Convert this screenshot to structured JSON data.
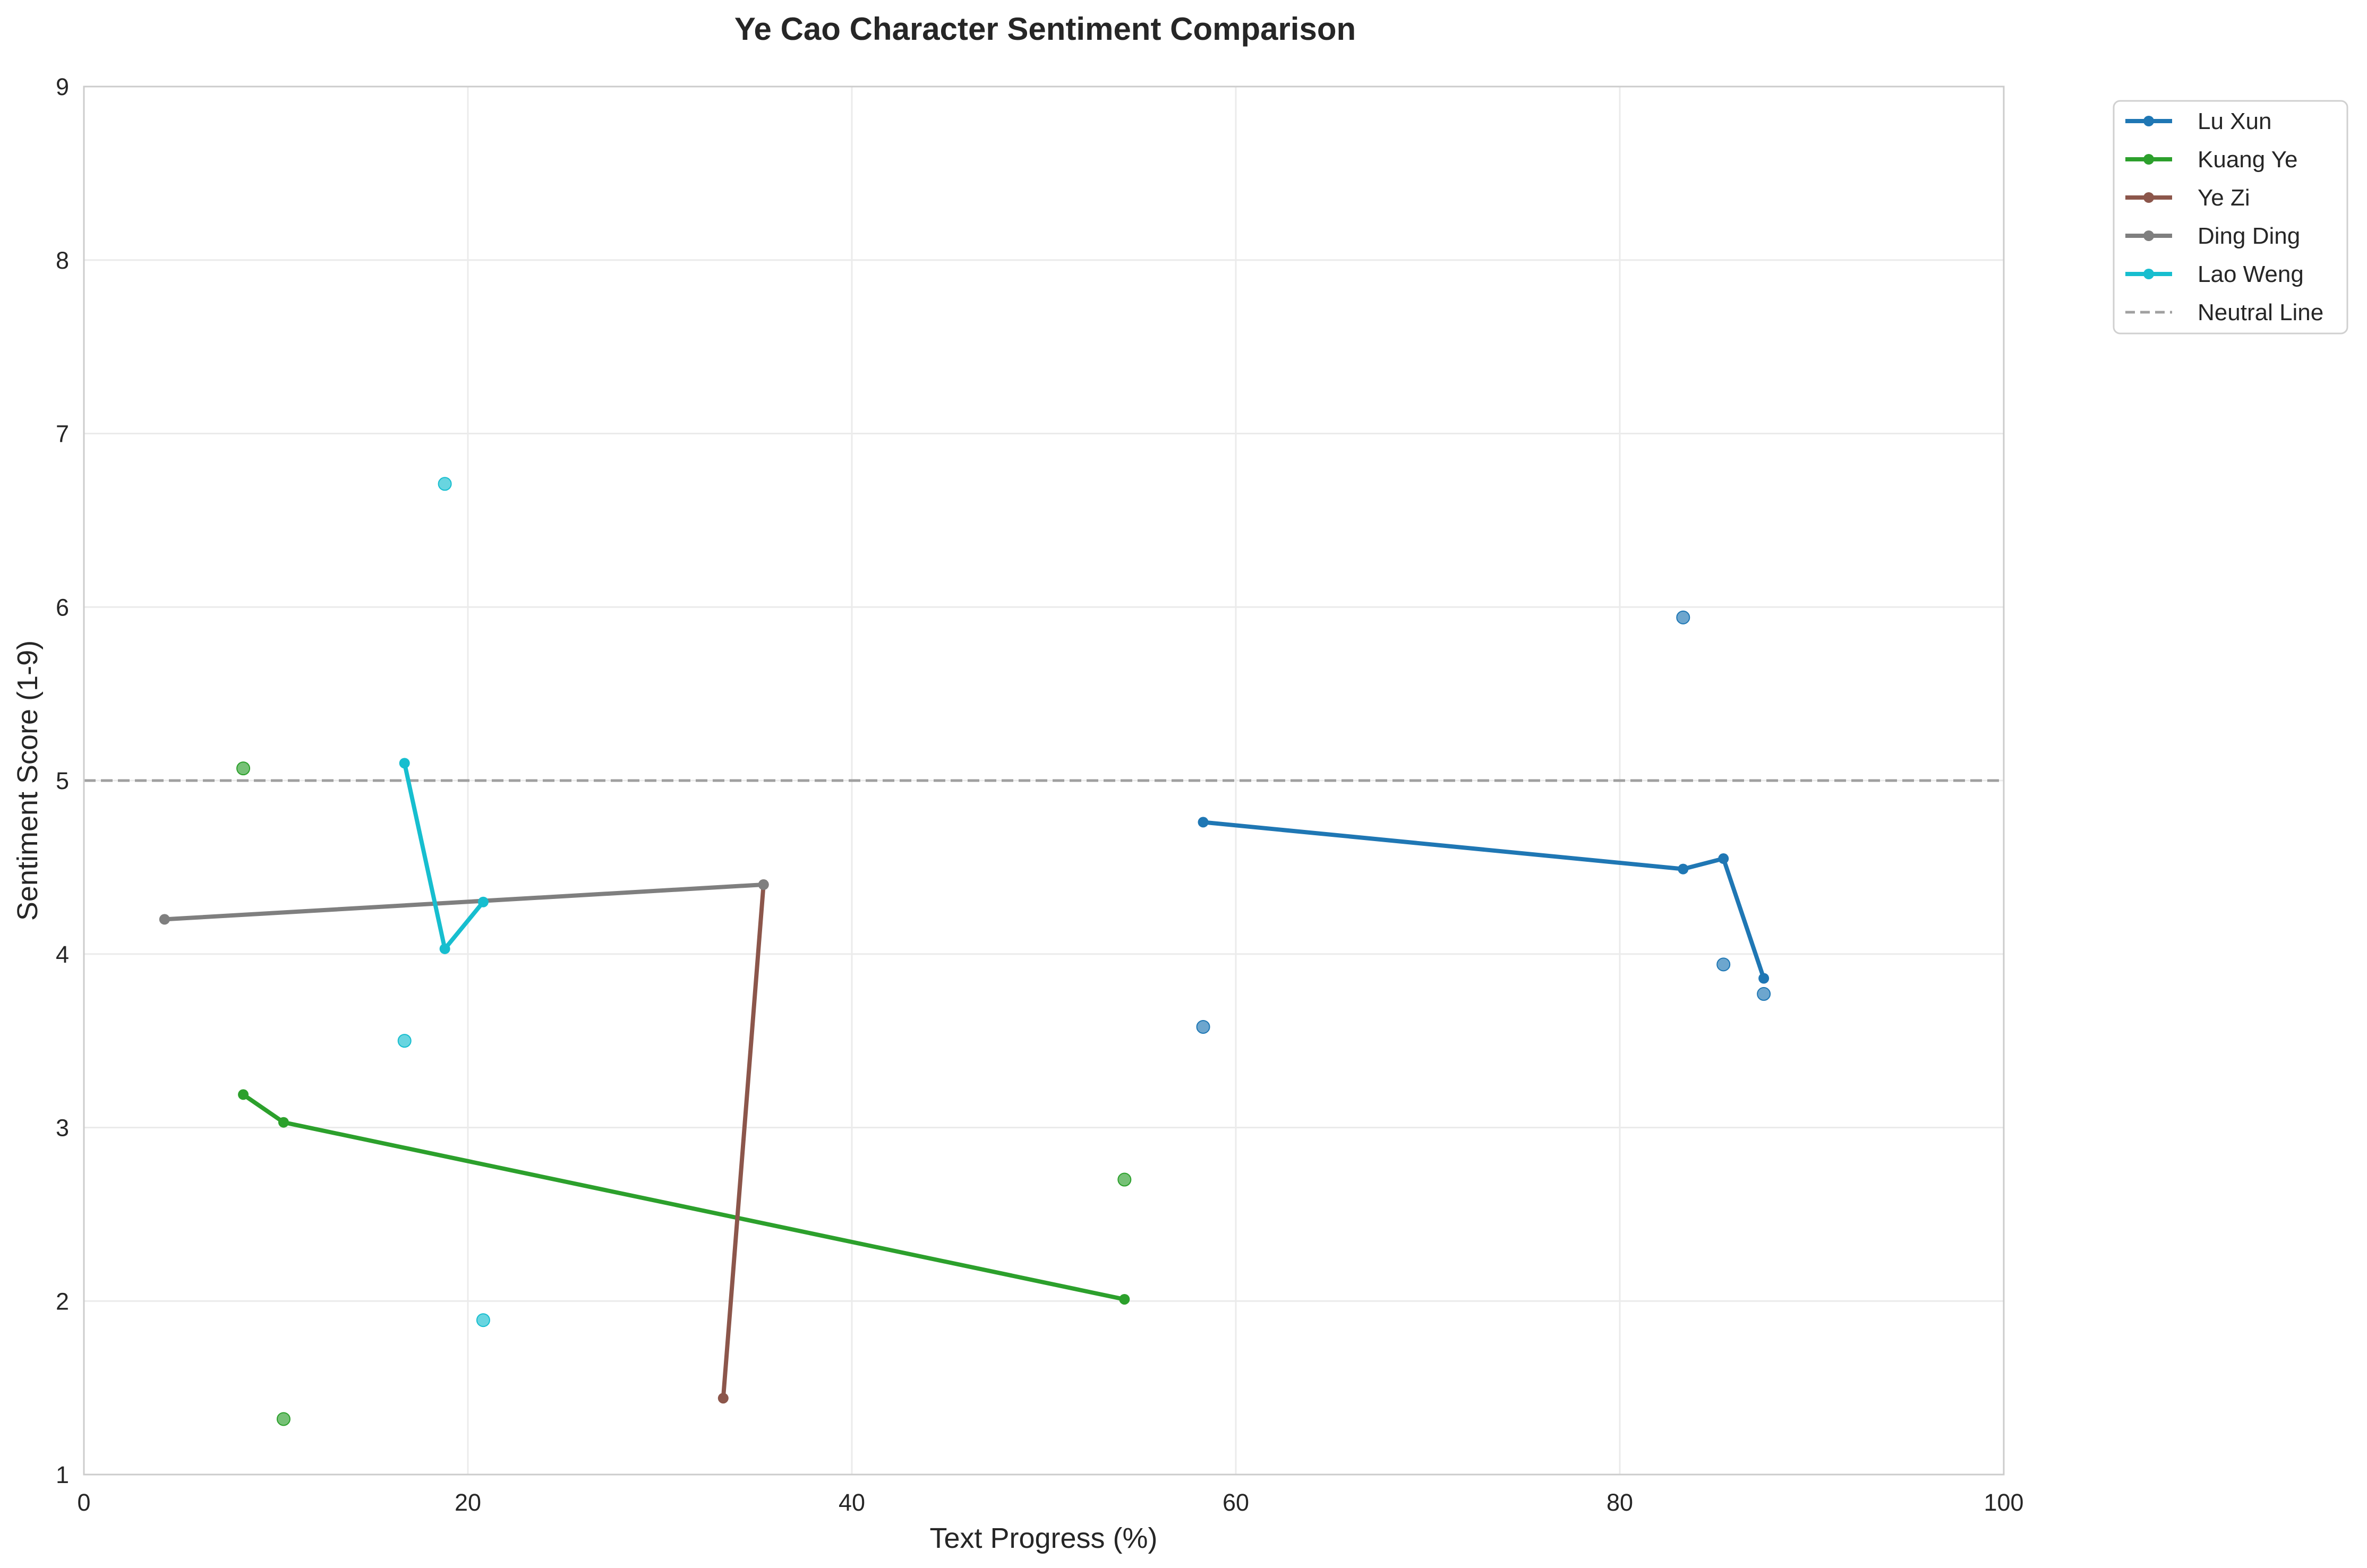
{
  "chart_data": {
    "type": "line",
    "title": "Ye Cao Character Sentiment Comparison",
    "xlabel": "Text Progress (%)",
    "ylabel": "Sentiment Score (1-9)",
    "xlim": [
      0,
      100
    ],
    "ylim": [
      1,
      9
    ],
    "xticks": [
      0,
      20,
      40,
      60,
      80,
      100
    ],
    "yticks": [
      1,
      2,
      3,
      4,
      5,
      6,
      7,
      8,
      9
    ],
    "grid": true,
    "legend_position": "outside top-right",
    "neutral_line": {
      "name": "Neutral Line",
      "y": 5,
      "color": "#a0a0a0",
      "style": "dashed"
    },
    "series": [
      {
        "name": "Lu Xun",
        "color": "#1f77b4",
        "line": [
          [
            58.3,
            4.76
          ],
          [
            83.3,
            4.49
          ],
          [
            85.4,
            4.55
          ],
          [
            87.5,
            3.86
          ]
        ],
        "scatter": [
          [
            58.3,
            3.58
          ],
          [
            83.3,
            5.94
          ],
          [
            85.4,
            3.94
          ],
          [
            87.5,
            3.77
          ]
        ]
      },
      {
        "name": "Kuang Ye",
        "color": "#2ca02c",
        "line": [
          [
            8.3,
            3.19
          ],
          [
            10.4,
            3.03
          ],
          [
            54.2,
            2.01
          ]
        ],
        "scatter": [
          [
            8.3,
            5.07
          ],
          [
            10.4,
            1.32
          ],
          [
            54.2,
            2.7
          ]
        ]
      },
      {
        "name": "Ye Zi",
        "color": "#8c564b",
        "line": [
          [
            33.3,
            1.44
          ],
          [
            35.4,
            4.4
          ]
        ],
        "scatter": []
      },
      {
        "name": "Ding Ding",
        "color": "#7f7f7f",
        "line": [
          [
            4.2,
            4.2
          ],
          [
            35.4,
            4.4
          ]
        ],
        "scatter": []
      },
      {
        "name": "Lao Weng",
        "color": "#17becf",
        "line": [
          [
            16.7,
            5.1
          ],
          [
            18.8,
            4.03
          ],
          [
            20.8,
            4.3
          ]
        ],
        "scatter": [
          [
            16.7,
            3.5
          ],
          [
            18.8,
            6.71
          ],
          [
            20.8,
            1.89
          ]
        ]
      }
    ]
  }
}
